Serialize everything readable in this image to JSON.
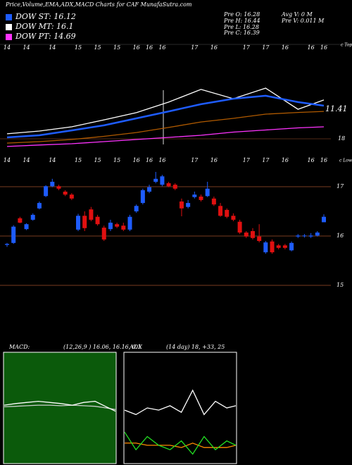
{
  "header": {
    "title": "Price,Volume,EMA,ADX,MACD Charts for CAF MunafaSutra.com",
    "legend": [
      {
        "name": "DOW ST: 16.12",
        "color": "#1e5cff"
      },
      {
        "name": "DOW MT: 16.1",
        "color": "#ffffff"
      },
      {
        "name": "DOW PT: 14.69",
        "color": "#ff33ff"
      }
    ],
    "info": [
      "Pre   O: 16.28",
      "Avg V: 0  M",
      "Pre   H: 16.44",
      "Pre   V: 0.011 M",
      "Pre   L: 16.28",
      "Pre   C: 16.39"
    ]
  },
  "chart_data": [
    {
      "type": "line",
      "annotations": [
        "c Tops",
        "11.41",
        "18"
      ],
      "x": [
        0,
        5,
        10,
        15,
        20,
        25,
        30,
        35,
        40,
        45,
        49
      ],
      "xlim": [
        0,
        49
      ],
      "ylim": [
        14,
        18.5
      ],
      "series": [
        {
          "color": "#b05a00",
          "values": [
            14.23,
            14.3,
            14.4,
            14.55,
            14.73,
            14.97,
            15.23,
            15.4,
            15.6,
            15.68,
            15.73
          ]
        },
        {
          "color": "#ff33ff",
          "values": [
            14.07,
            14.14,
            14.2,
            14.3,
            14.4,
            14.5,
            14.6,
            14.75,
            14.85,
            14.95,
            15.0
          ]
        },
        {
          "color": "#ffffff",
          "values": [
            14.67,
            14.8,
            15.0,
            15.33,
            15.67,
            16.17,
            16.77,
            16.33,
            16.83,
            15.83,
            16.27
          ]
        },
        {
          "color": "#1e5cff",
          "values": [
            14.5,
            14.6,
            14.83,
            15.07,
            15.4,
            15.73,
            16.07,
            16.33,
            16.47,
            16.17,
            16.0
          ]
        }
      ]
    },
    {
      "type": "candlestick",
      "annotations": [
        "c Lows"
      ],
      "up_color": "#1e5cff",
      "down_color": "#e01010",
      "categories": [
        "14",
        null,
        null,
        "14",
        null,
        null,
        null,
        "14",
        null,
        null,
        null,
        "15",
        null,
        null,
        "15",
        null,
        null,
        "15",
        null,
        null,
        "16",
        null,
        "16",
        null,
        "16",
        null,
        null,
        null,
        null,
        "17",
        null,
        null,
        "16",
        null,
        null,
        null,
        null,
        "17",
        null,
        null,
        "17",
        null,
        null,
        "16",
        null,
        null,
        null,
        "16",
        null,
        "16"
      ],
      "open": [
        15.82,
        15.86,
        16.36,
        16.14,
        16.33,
        16.56,
        16.81,
        17.01,
        17.01,
        16.9,
        16.84,
        16.13,
        16.41,
        16.54,
        16.39,
        16.17,
        16.14,
        16.24,
        16.21,
        16.13,
        16.5,
        16.67,
        16.9,
        17.1,
        17.04,
        17.07,
        17.04,
        16.7,
        16.59,
        16.79,
        16.8,
        16.81,
        16.76,
        16.61,
        16.53,
        16.41,
        16.29,
        16.07,
        16.1,
        15.99,
        15.67,
        15.89,
        15.81,
        15.81,
        15.71,
        15.99,
        16.0,
        15.99,
        16.01,
        16.28
      ],
      "high": [
        15.86,
        16.22,
        16.39,
        16.26,
        16.46,
        16.7,
        17.03,
        17.16,
        17.04,
        16.93,
        16.87,
        16.45,
        16.5,
        16.59,
        16.43,
        16.21,
        16.33,
        16.27,
        16.27,
        16.43,
        16.64,
        16.96,
        17.04,
        17.3,
        17.24,
        17.1,
        17.07,
        16.76,
        16.73,
        16.9,
        16.84,
        17.1,
        16.8,
        16.67,
        16.56,
        16.46,
        16.33,
        16.1,
        16.16,
        16.24,
        15.9,
        15.93,
        15.84,
        15.84,
        15.89,
        16.04,
        16.04,
        16.06,
        16.1,
        16.44
      ],
      "low": [
        15.78,
        15.84,
        16.26,
        16.12,
        16.31,
        16.54,
        16.79,
        16.99,
        16.93,
        16.81,
        16.73,
        16.1,
        16.1,
        16.3,
        16.21,
        15.9,
        16.1,
        16.16,
        16.1,
        16.1,
        16.47,
        16.64,
        16.87,
        17.07,
        17.01,
        16.99,
        16.93,
        16.4,
        16.56,
        16.76,
        16.7,
        16.79,
        16.61,
        16.39,
        16.36,
        16.3,
        16.04,
        15.96,
        15.93,
        15.87,
        15.64,
        15.64,
        15.73,
        15.73,
        15.69,
        15.96,
        15.97,
        15.96,
        15.99,
        16.28
      ],
      "close": [
        15.84,
        16.19,
        16.27,
        16.24,
        16.43,
        16.67,
        17.01,
        17.1,
        16.96,
        16.84,
        16.76,
        16.41,
        16.16,
        16.33,
        16.24,
        15.93,
        16.27,
        16.19,
        16.13,
        16.39,
        16.61,
        16.93,
        16.99,
        17.16,
        17.21,
        17.01,
        16.96,
        16.56,
        16.67,
        16.84,
        16.73,
        16.96,
        16.64,
        16.41,
        16.39,
        16.33,
        16.07,
        15.99,
        15.96,
        15.9,
        15.87,
        15.67,
        15.76,
        15.76,
        15.86,
        16.01,
        16.01,
        16.01,
        16.07,
        16.39
      ],
      "ylim": [
        14.8,
        17.5
      ],
      "yticks": [
        15,
        16,
        17
      ],
      "grid_color": "#a0522d"
    },
    {
      "type": "line",
      "title": "MACD:",
      "subtitle": "(12,26,9 ) 16.06, 16.16, 0.1",
      "background": "#0b5a0b",
      "x": [
        0,
        5,
        10,
        15,
        20,
        25,
        30,
        35,
        40,
        45,
        49
      ],
      "xlim": [
        0,
        49
      ],
      "ylim": [
        -1,
        1
      ],
      "series": [
        {
          "color": "#cccccc",
          "values": [
            0.02,
            0.03,
            0.04,
            0.05,
            0.05,
            0.04,
            0.05,
            0.04,
            0.03,
            0.0,
            -0.03
          ]
        },
        {
          "color": "#ffffff",
          "values": [
            0.05,
            0.08,
            0.1,
            0.12,
            0.1,
            0.08,
            0.05,
            0.1,
            0.12,
            0.02,
            -0.06
          ]
        }
      ]
    },
    {
      "type": "line",
      "title": "ADX",
      "subtitle": "(14  day) 18, +33, 25",
      "background": "#000000",
      "x": [
        0,
        5,
        10,
        15,
        20,
        25,
        30,
        35,
        40,
        45,
        49
      ],
      "xlim": [
        0,
        49
      ],
      "ylim": [
        0,
        50
      ],
      "series": [
        {
          "color": "#ff8c00",
          "values": [
            9,
            9,
            8,
            8,
            8,
            7,
            9,
            7,
            7,
            7,
            8
          ]
        },
        {
          "color": "#22dd22",
          "values": [
            14,
            6,
            12,
            8,
            6,
            10,
            4,
            12,
            6,
            10,
            8
          ]
        },
        {
          "color": "#ffffff",
          "values": [
            24,
            22,
            25,
            24,
            26,
            23,
            33,
            22,
            28,
            25,
            26
          ]
        }
      ]
    }
  ]
}
